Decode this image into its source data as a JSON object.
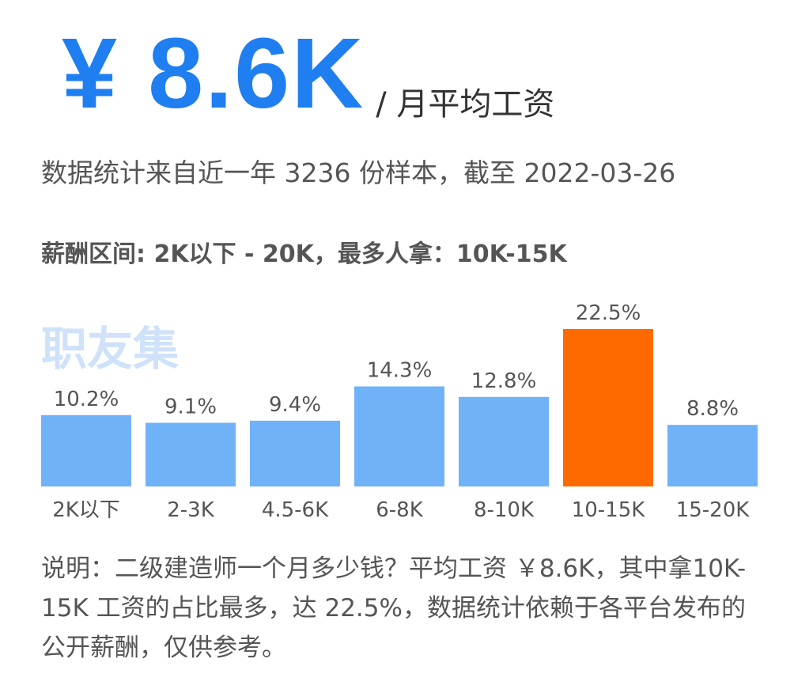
{
  "headline": {
    "amount": "¥ 8.6K",
    "unit": "/ 月平均工资"
  },
  "stats_note": "数据统计来自近一年 3236 份样本，截至 2022-03-26",
  "range_line": "薪酬区间: 2K以下 - 20K，最多人拿：10K-15K",
  "watermark": "职友集",
  "chart_data": {
    "type": "bar",
    "categories": [
      "2K以下",
      "2-3K",
      "4.5-6K",
      "6-8K",
      "8-10K",
      "10-15K",
      "15-20K"
    ],
    "values": [
      10.2,
      9.1,
      9.4,
      14.3,
      12.8,
      22.5,
      8.8
    ],
    "value_labels": [
      "10.2%",
      "9.1%",
      "9.4%",
      "14.3%",
      "12.8%",
      "22.5%",
      "8.8%"
    ],
    "highlight_index": 5,
    "colors": {
      "bar": "#6fb2f7",
      "highlight": "#ff6a00"
    },
    "title": "",
    "xlabel": "",
    "ylabel": "",
    "grid": false
  },
  "footer": "说明：二级建造师一个月多少钱？平均工资 ￥8.6K，其中拿10K-15K 工资的占比最多，达 22.5%，数据统计依赖于各平台发布的公开薪酬，仅供参考。"
}
